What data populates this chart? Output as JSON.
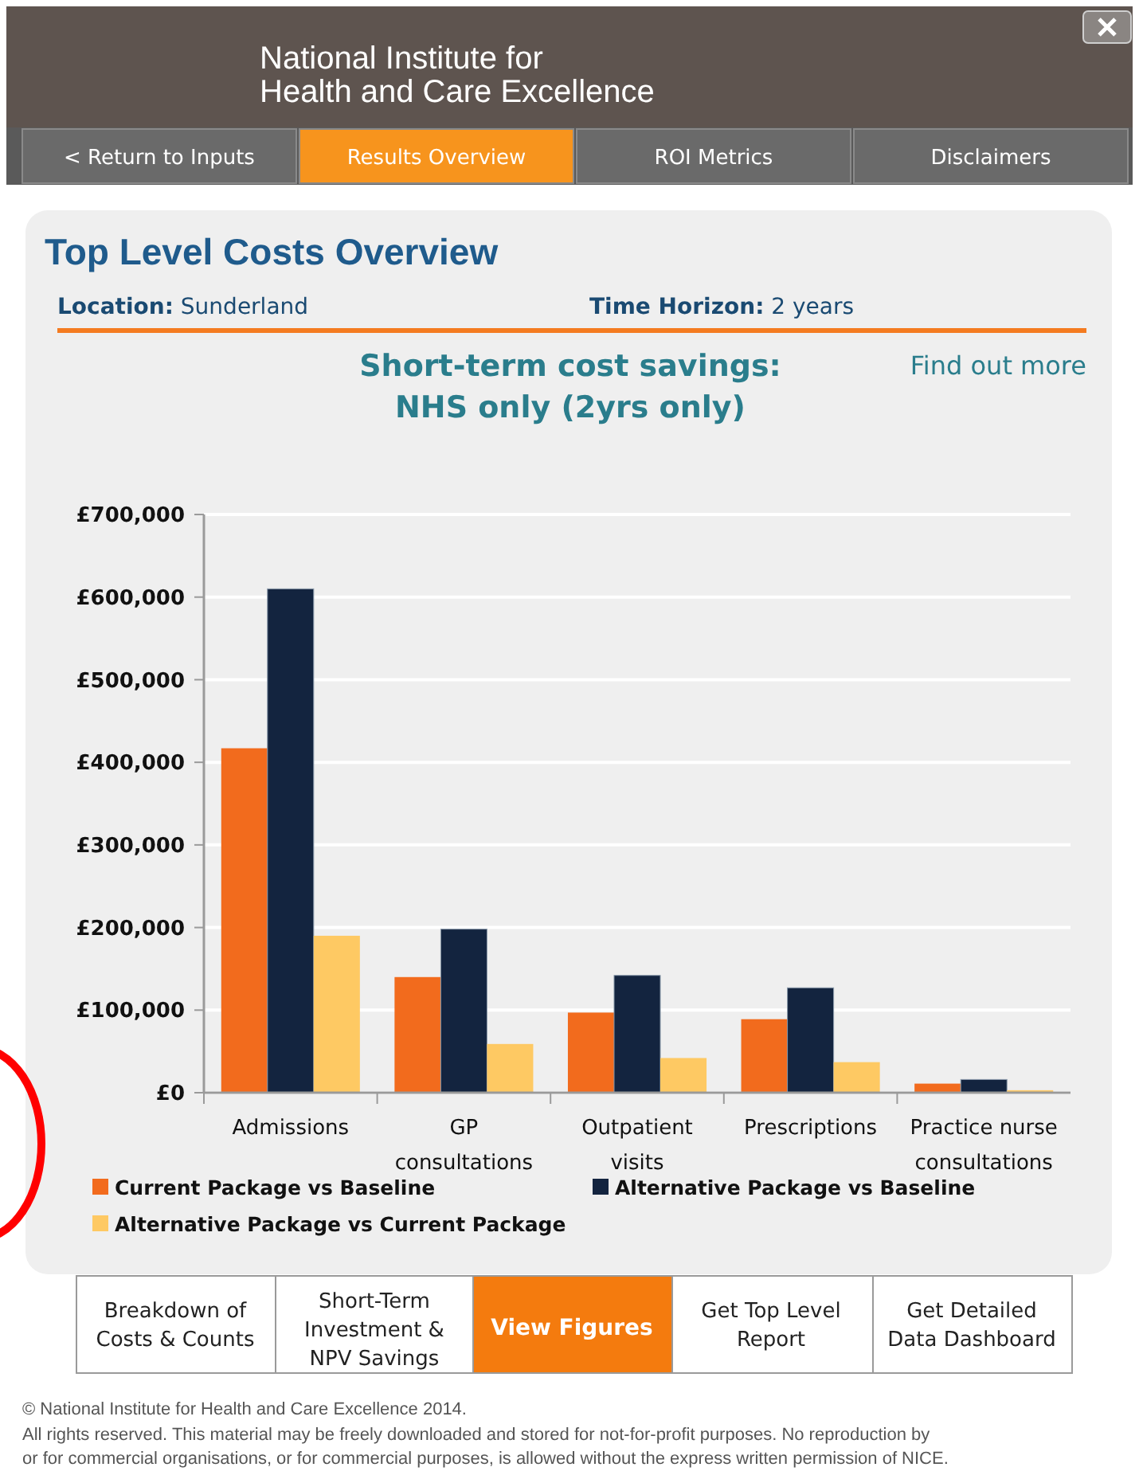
{
  "chart_data": {
    "type": "bar",
    "title": "Short-term cost savings: NHS only (2yrs only)",
    "categories": [
      "Admissions",
      "GP consultations",
      "Outpatient visits",
      "Prescriptions",
      "Practice nurse consultations"
    ],
    "series": [
      {
        "name": "Current Package vs Baseline",
        "color": "#f26b1d",
        "values": [
          417000,
          140000,
          97000,
          89000,
          11000
        ]
      },
      {
        "name": "Alternative Package vs Baseline",
        "color": "#13243f",
        "values": [
          610000,
          198000,
          142000,
          127000,
          16000
        ]
      },
      {
        "name": "Alternative Package vs Current Package",
        "color": "#fec963",
        "values": [
          190000,
          59000,
          42000,
          37000,
          3000
        ]
      }
    ],
    "ylim": [
      0,
      700000
    ],
    "yticks": [
      {
        "value": 0,
        "label": "£0"
      },
      {
        "value": 100000,
        "label": "£100,000"
      },
      {
        "value": 200000,
        "label": "£200,000"
      },
      {
        "value": 300000,
        "label": "£300,000"
      },
      {
        "value": 400000,
        "label": "£400,000"
      },
      {
        "value": 500000,
        "label": "£500,000"
      },
      {
        "value": 600000,
        "label": "£600,000"
      },
      {
        "value": 700000,
        "label": "£700,000"
      }
    ],
    "grid": "y",
    "legend": "bottom",
    "annotations": [
      "National Institute for Health and Care Excellence",
      "< Return to Inputs",
      "Results Overview",
      "ROI Metrics",
      "Disclaimers",
      "Top Level Costs Overview",
      "Location: Sunderland",
      "Time Horizon: 2 years",
      "Find out more",
      "Breakdown of Costs & Counts",
      "Short-Term Investment & NPV Savings",
      "View Figures",
      "Get Top Level Report",
      "Get Detailed Data Dashboard",
      "© National Institute for Health and Care Excellence 2014.",
      "All rights reserved. This material may be freely downloaded and stored for not-for-profit purposes. No reproduction by or for commercial organisations, or for commercial purposes, is allowed without the express written permission of NICE."
    ]
  }
}
